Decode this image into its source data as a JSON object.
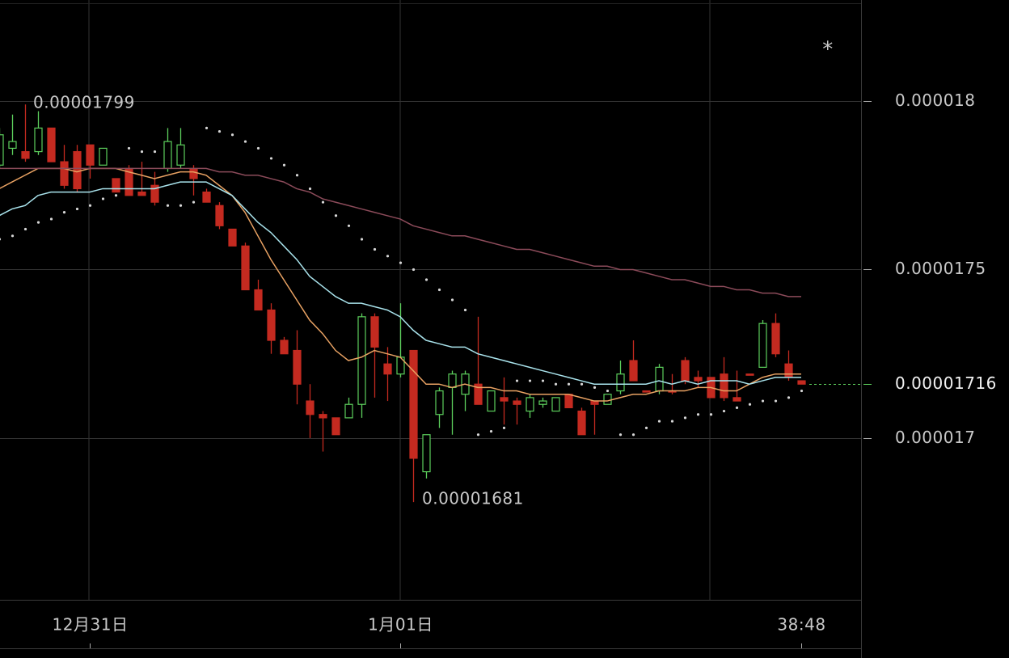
{
  "chart_data": {
    "type": "candlestick",
    "settings_icon": "*",
    "categories": [
      null,
      null,
      null,
      null,
      null,
      null,
      null,
      "12月31日",
      null,
      null,
      null,
      null,
      null,
      null,
      null,
      null,
      null,
      null,
      null,
      null,
      null,
      null,
      null,
      null,
      null,
      null,
      null,
      null,
      null,
      null,
      null,
      "1月01日",
      null,
      null,
      null,
      null,
      null,
      null,
      null,
      null,
      null,
      null,
      null,
      null,
      null,
      null,
      null,
      null,
      null,
      null,
      null,
      null,
      null,
      null,
      null,
      null,
      null,
      null,
      null,
      null,
      null,
      null,
      "38:48"
    ],
    "open": [
      1.781e-05,
      1.786e-05,
      1.785e-05,
      1.785e-05,
      1.792e-05,
      1.782e-05,
      1.785e-05,
      1.787e-05,
      1.781e-05,
      1.777e-05,
      1.78e-05,
      1.773e-05,
      1.775e-05,
      1.78e-05,
      1.781e-05,
      1.78e-05,
      1.773e-05,
      1.769e-05,
      1.762e-05,
      1.757e-05,
      1.744e-05,
      1.738e-05,
      1.729e-05,
      1.726e-05,
      1.711e-05,
      1.707e-05,
      1.706e-05,
      1.706e-05,
      1.71e-05,
      1.736e-05,
      1.722e-05,
      1.719e-05,
      1.726e-05,
      1.69e-05,
      1.707e-05,
      1.715e-05,
      1.713e-05,
      1.716e-05,
      1.708e-05,
      1.712e-05,
      1.711e-05,
      1.708e-05,
      1.71e-05,
      1.708e-05,
      1.713e-05,
      1.708e-05,
      1.711e-05,
      1.71e-05,
      1.714e-05,
      1.723e-05,
      1.714e-05,
      1.714e-05,
      1.714e-05,
      1.723e-05,
      1.718e-05,
      1.718e-05,
      1.719e-05,
      1.712e-05,
      1.719e-05,
      1.721e-05,
      1.734e-05,
      1.722e-05,
      1.717e-05
    ],
    "high": [
      1.792e-05,
      1.796e-05,
      1.799e-05,
      1.797e-05,
      1.792e-05,
      1.787e-05,
      1.787e-05,
      1.787e-05,
      1.786e-05,
      1.777e-05,
      1.781e-05,
      1.782e-05,
      1.779e-05,
      1.792e-05,
      1.792e-05,
      1.781e-05,
      1.774e-05,
      1.77e-05,
      1.762e-05,
      1.758e-05,
      1.747e-05,
      1.74e-05,
      1.73e-05,
      1.732e-05,
      1.716e-05,
      1.708e-05,
      1.706e-05,
      1.712e-05,
      1.737e-05,
      1.737e-05,
      1.727e-05,
      1.74e-05,
      1.726e-05,
      1.701e-05,
      1.715e-05,
      1.72e-05,
      1.72e-05,
      1.736e-05,
      1.714e-05,
      1.718e-05,
      1.712e-05,
      1.713e-05,
      1.712e-05,
      1.712e-05,
      1.713e-05,
      1.709e-05,
      1.711e-05,
      1.713e-05,
      1.723e-05,
      1.729e-05,
      1.714e-05,
      1.722e-05,
      1.719e-05,
      1.724e-05,
      1.72e-05,
      1.718e-05,
      1.724e-05,
      1.72e-05,
      1.719e-05,
      1.735e-05,
      1.737e-05,
      1.726e-05,
      1.717e-05
    ],
    "low": [
      1.78e-05,
      1.784e-05,
      1.782e-05,
      1.784e-05,
      1.782e-05,
      1.774e-05,
      1.773e-05,
      1.777e-05,
      1.781e-05,
      1.773e-05,
      1.772e-05,
      1.772e-05,
      1.769e-05,
      1.779e-05,
      1.78e-05,
      1.772e-05,
      1.77e-05,
      1.762e-05,
      1.757e-05,
      1.744e-05,
      1.738e-05,
      1.725e-05,
      1.725e-05,
      1.71e-05,
      1.7e-05,
      1.696e-05,
      1.701e-05,
      1.706e-05,
      1.706e-05,
      1.712e-05,
      1.711e-05,
      1.718e-05,
      1.681e-05,
      1.688e-05,
      1.703e-05,
      1.701e-05,
      1.708e-05,
      1.71e-05,
      1.708e-05,
      1.704e-05,
      1.704e-05,
      1.706e-05,
      1.709e-05,
      1.708e-05,
      1.709e-05,
      1.701e-05,
      1.701e-05,
      1.71e-05,
      1.713e-05,
      1.717e-05,
      1.714e-05,
      1.713e-05,
      1.713e-05,
      1.716e-05,
      1.715e-05,
      1.712e-05,
      1.711e-05,
      1.711e-05,
      1.719e-05,
      1.721e-05,
      1.724e-05,
      1.717e-05,
      1.716e-05
    ],
    "close": [
      1.79e-05,
      1.788e-05,
      1.783e-05,
      1.792e-05,
      1.782e-05,
      1.775e-05,
      1.774e-05,
      1.781e-05,
      1.786e-05,
      1.773e-05,
      1.772e-05,
      1.772e-05,
      1.77e-05,
      1.788e-05,
      1.787e-05,
      1.777e-05,
      1.77e-05,
      1.763e-05,
      1.757e-05,
      1.744e-05,
      1.738e-05,
      1.729e-05,
      1.725e-05,
      1.716e-05,
      1.707e-05,
      1.706e-05,
      1.701e-05,
      1.71e-05,
      1.736e-05,
      1.727e-05,
      1.719e-05,
      1.724e-05,
      1.694e-05,
      1.701e-05,
      1.714e-05,
      1.719e-05,
      1.719e-05,
      1.71e-05,
      1.714e-05,
      1.711e-05,
      1.71e-05,
      1.712e-05,
      1.711e-05,
      1.712e-05,
      1.709e-05,
      1.701e-05,
      1.71e-05,
      1.713e-05,
      1.719e-05,
      1.717e-05,
      1.714e-05,
      1.721e-05,
      1.714e-05,
      1.717e-05,
      1.717e-05,
      1.712e-05,
      1.712e-05,
      1.711e-05,
      1.719e-05,
      1.734e-05,
      1.725e-05,
      1.718e-05,
      1.716e-05
    ],
    "up_color": "#5ccf5c",
    "down_color": "#c42a20",
    "moving_averages": [
      {
        "color": "#e9a263",
        "values": [
          1.774e-05,
          1.776e-05,
          1.778e-05,
          1.78e-05,
          1.78e-05,
          1.78e-05,
          1.779e-05,
          1.78e-05,
          1.78e-05,
          1.78e-05,
          1.779e-05,
          1.778e-05,
          1.777e-05,
          1.778e-05,
          1.779e-05,
          1.779e-05,
          1.778e-05,
          1.775e-05,
          1.772e-05,
          1.767e-05,
          1.76e-05,
          1.753e-05,
          1.747e-05,
          1.741e-05,
          1.735e-05,
          1.731e-05,
          1.726e-05,
          1.723e-05,
          1.724e-05,
          1.726e-05,
          1.725e-05,
          1.724e-05,
          1.72e-05,
          1.716e-05,
          1.716e-05,
          1.715e-05,
          1.716e-05,
          1.715e-05,
          1.715e-05,
          1.714e-05,
          1.714e-05,
          1.713e-05,
          1.713e-05,
          1.713e-05,
          1.713e-05,
          1.712e-05,
          1.711e-05,
          1.711e-05,
          1.712e-05,
          1.713e-05,
          1.713e-05,
          1.714e-05,
          1.714e-05,
          1.714e-05,
          1.715e-05,
          1.715e-05,
          1.714e-05,
          1.714e-05,
          1.716e-05,
          1.718e-05,
          1.719e-05,
          1.719e-05,
          1.719e-05
        ]
      },
      {
        "color": "#a9e3ec",
        "values": [
          1.766e-05,
          1.768e-05,
          1.769e-05,
          1.772e-05,
          1.773e-05,
          1.773e-05,
          1.773e-05,
          1.773e-05,
          1.774e-05,
          1.774e-05,
          1.774e-05,
          1.774e-05,
          1.774e-05,
          1.775e-05,
          1.776e-05,
          1.776e-05,
          1.776e-05,
          1.774e-05,
          1.772e-05,
          1.768e-05,
          1.764e-05,
          1.761e-05,
          1.757e-05,
          1.753e-05,
          1.748e-05,
          1.745e-05,
          1.742e-05,
          1.74e-05,
          1.74e-05,
          1.739e-05,
          1.738e-05,
          1.736e-05,
          1.732e-05,
          1.729e-05,
          1.728e-05,
          1.727e-05,
          1.727e-05,
          1.725e-05,
          1.724e-05,
          1.723e-05,
          1.722e-05,
          1.721e-05,
          1.72e-05,
          1.719e-05,
          1.718e-05,
          1.717e-05,
          1.716e-05,
          1.716e-05,
          1.716e-05,
          1.716e-05,
          1.716e-05,
          1.717e-05,
          1.716e-05,
          1.717e-05,
          1.716e-05,
          1.717e-05,
          1.717e-05,
          1.717e-05,
          1.716e-05,
          1.717e-05,
          1.718e-05,
          1.718e-05,
          1.718e-05
        ]
      },
      {
        "color": "#8c4b5a",
        "values": [
          1.78e-05,
          1.78e-05,
          1.78e-05,
          1.78e-05,
          1.78e-05,
          1.78e-05,
          1.78e-05,
          1.78e-05,
          1.78e-05,
          1.78e-05,
          1.78e-05,
          1.78e-05,
          1.78e-05,
          1.78e-05,
          1.78e-05,
          1.78e-05,
          1.78e-05,
          1.779e-05,
          1.779e-05,
          1.778e-05,
          1.778e-05,
          1.777e-05,
          1.776e-05,
          1.774e-05,
          1.773e-05,
          1.771e-05,
          1.77e-05,
          1.769e-05,
          1.768e-05,
          1.767e-05,
          1.766e-05,
          1.765e-05,
          1.763e-05,
          1.762e-05,
          1.761e-05,
          1.76e-05,
          1.76e-05,
          1.759e-05,
          1.758e-05,
          1.757e-05,
          1.756e-05,
          1.756e-05,
          1.755e-05,
          1.754e-05,
          1.753e-05,
          1.752e-05,
          1.751e-05,
          1.751e-05,
          1.75e-05,
          1.75e-05,
          1.749e-05,
          1.748e-05,
          1.747e-05,
          1.747e-05,
          1.746e-05,
          1.745e-05,
          1.745e-05,
          1.744e-05,
          1.744e-05,
          1.743e-05,
          1.743e-05,
          1.742e-05,
          1.742e-05
        ]
      }
    ],
    "sar": {
      "color": "#d6d6d6",
      "values": [
        1.759e-05,
        1.76e-05,
        1.762e-05,
        1.764e-05,
        1.765e-05,
        1.767e-05,
        1.768e-05,
        1.769e-05,
        1.771e-05,
        1.772e-05,
        1.786e-05,
        1.785e-05,
        1.785e-05,
        1.769e-05,
        1.769e-05,
        1.77e-05,
        1.792e-05,
        1.791e-05,
        1.79e-05,
        1.788e-05,
        1.786e-05,
        1.783e-05,
        1.781e-05,
        1.778e-05,
        1.774e-05,
        1.77e-05,
        1.766e-05,
        1.763e-05,
        1.759e-05,
        1.756e-05,
        1.754e-05,
        1.752e-05,
        1.75e-05,
        1.747e-05,
        1.744e-05,
        1.741e-05,
        1.738e-05,
        1.701e-05,
        1.702e-05,
        1.703e-05,
        1.717e-05,
        1.717e-05,
        1.717e-05,
        1.716e-05,
        1.716e-05,
        1.716e-05,
        1.715e-05,
        1.714e-05,
        1.701e-05,
        1.701e-05,
        1.703e-05,
        1.705e-05,
        1.705e-05,
        1.706e-05,
        1.707e-05,
        1.707e-05,
        1.708e-05,
        1.709e-05,
        1.71e-05,
        1.711e-05,
        1.711e-05,
        1.712e-05,
        1.714e-05
      ]
    },
    "ylim": [
      1.652e-05,
      1.83e-05
    ],
    "yticks": [
      1.7e-05,
      1.75e-05,
      1.8e-05
    ],
    "grid": true
  }
}
